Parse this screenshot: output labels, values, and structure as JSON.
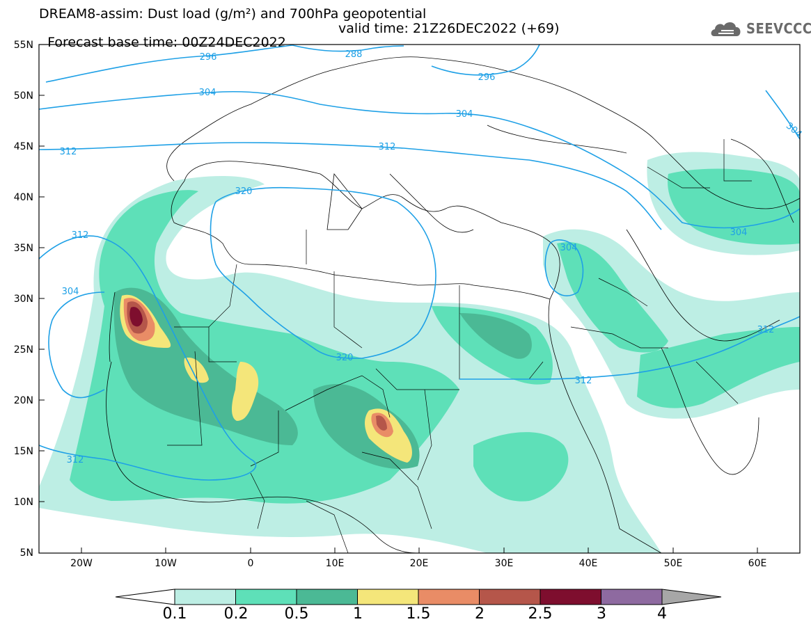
{
  "title": {
    "line1": "DREAM8-assim: Dust load (g/m²) and 700hPa geopotential",
    "line2_base": "Forecast base time: 00Z24DEC2022",
    "line2_valid": "valid time: 21Z26DEC2022 (+69)"
  },
  "logo": {
    "text": "SEEVCCC",
    "icon": "cloud-logo-icon"
  },
  "axes": {
    "lon_ticks": [
      "20W",
      "10W",
      "0",
      "10E",
      "20E",
      "30E",
      "40E",
      "50E",
      "60E"
    ],
    "lat_ticks": [
      "55N",
      "50N",
      "45N",
      "40N",
      "35N",
      "30N",
      "25N",
      "20N",
      "15N",
      "10N",
      "5N"
    ]
  },
  "contour_labels": [
    "296",
    "288",
    "296",
    "304",
    "304",
    "312",
    "312",
    "320",
    "312",
    "304",
    "312",
    "320",
    "312",
    "304",
    "304",
    "312",
    "304"
  ],
  "colorbar": {
    "labels": [
      "0.1",
      "0.2",
      "0.5",
      "1",
      "1.5",
      "2",
      "2.5",
      "3",
      "4"
    ],
    "colors": [
      "#ffffff",
      "#bdeee4",
      "#5ee0b8",
      "#4bb995",
      "#f4e67a",
      "#e98c66",
      "#b5564a",
      "#7e0e2e",
      "#8e6aa0",
      "#a7a7a7"
    ]
  }
}
